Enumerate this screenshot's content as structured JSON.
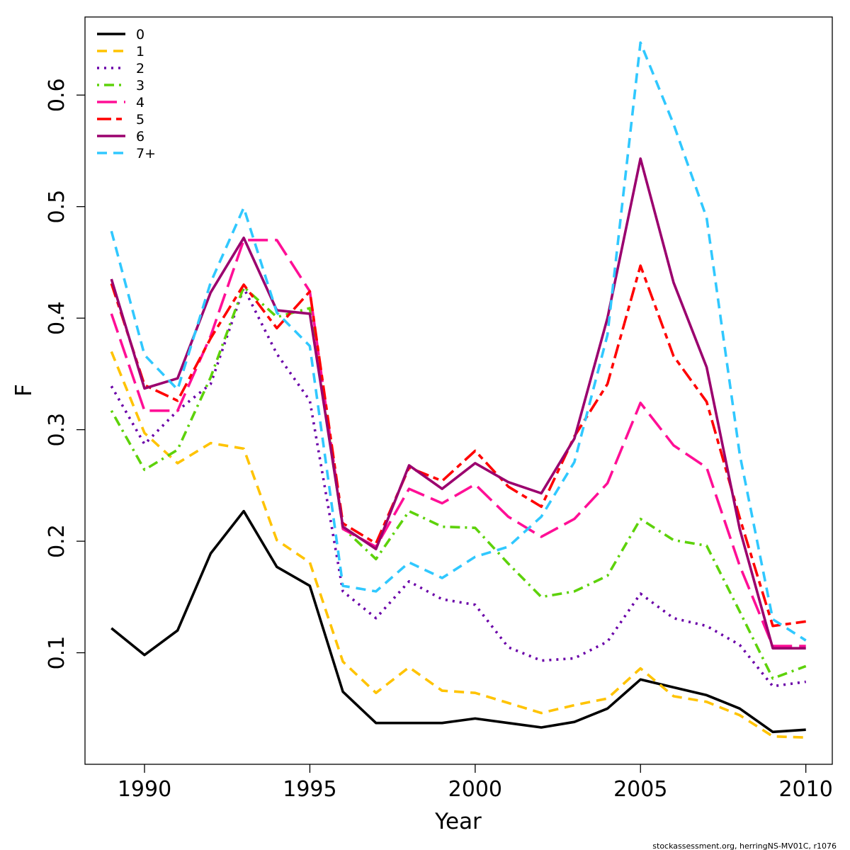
{
  "chart_data": {
    "type": "line",
    "xlabel": "Year",
    "ylabel": "F",
    "xlim": [
      1988.2,
      2010.8
    ],
    "ylim": [
      0.0,
      0.67
    ],
    "x_ticks": [
      1990,
      1995,
      2000,
      2005,
      2010
    ],
    "y_ticks": [
      0.1,
      0.2,
      0.3,
      0.4,
      0.5,
      0.6
    ],
    "x_tick_labels": [
      "1990",
      "1995",
      "2000",
      "2005",
      "2010"
    ],
    "y_tick_labels": [
      "0.1",
      "0.2",
      "0.3",
      "0.4",
      "0.5",
      "0.6"
    ],
    "grid": false,
    "legend_position": "top-left",
    "x": [
      1989,
      1990,
      1991,
      1992,
      1993,
      1994,
      1995,
      1996,
      1997,
      1998,
      1999,
      2000,
      2001,
      2002,
      2003,
      2004,
      2005,
      2006,
      2007,
      2008,
      2009,
      2010
    ],
    "series": [
      {
        "name": "0",
        "color": "#000000",
        "dash": "solid",
        "values": [
          0.122,
          0.098,
          0.12,
          0.189,
          0.227,
          0.177,
          0.16,
          0.065,
          0.037,
          0.037,
          0.037,
          0.041,
          0.037,
          0.033,
          0.038,
          0.05,
          0.076,
          0.069,
          0.062,
          0.05,
          0.029,
          0.031
        ]
      },
      {
        "name": "1",
        "color": "#FFC300",
        "dash": "dashed",
        "values": [
          0.37,
          0.297,
          0.27,
          0.288,
          0.283,
          0.201,
          0.181,
          0.092,
          0.064,
          0.087,
          0.066,
          0.064,
          0.055,
          0.046,
          0.053,
          0.059,
          0.086,
          0.061,
          0.056,
          0.044,
          0.025,
          0.024
        ]
      },
      {
        "name": "2",
        "color": "#6A00A8",
        "dash": "dotted",
        "values": [
          0.339,
          0.287,
          0.317,
          0.341,
          0.427,
          0.368,
          0.326,
          0.155,
          0.131,
          0.164,
          0.148,
          0.143,
          0.105,
          0.093,
          0.095,
          0.11,
          0.153,
          0.131,
          0.124,
          0.107,
          0.07,
          0.074
        ]
      },
      {
        "name": "3",
        "color": "#5DD20A",
        "dash": "dotdash",
        "values": [
          0.317,
          0.264,
          0.282,
          0.347,
          0.428,
          0.401,
          0.409,
          0.212,
          0.184,
          0.227,
          0.213,
          0.212,
          0.18,
          0.15,
          0.155,
          0.169,
          0.22,
          0.201,
          0.196,
          0.137,
          0.077,
          0.088
        ]
      },
      {
        "name": "4",
        "color": "#FF0F96",
        "dash": "longdash",
        "values": [
          0.404,
          0.317,
          0.317,
          0.384,
          0.47,
          0.47,
          0.424,
          0.211,
          0.195,
          0.247,
          0.234,
          0.251,
          0.222,
          0.204,
          0.22,
          0.252,
          0.324,
          0.286,
          0.266,
          0.178,
          0.106,
          0.106
        ]
      },
      {
        "name": "5",
        "color": "#FF0000",
        "dash": "twodash",
        "values": [
          0.431,
          0.34,
          0.326,
          0.382,
          0.43,
          0.391,
          0.424,
          0.216,
          0.198,
          0.266,
          0.254,
          0.281,
          0.249,
          0.231,
          0.294,
          0.341,
          0.447,
          0.366,
          0.325,
          0.221,
          0.124,
          0.128
        ]
      },
      {
        "name": "6",
        "color": "#9B006E",
        "dash": "solid",
        "values": [
          0.435,
          0.337,
          0.346,
          0.423,
          0.472,
          0.407,
          0.404,
          0.213,
          0.193,
          0.268,
          0.247,
          0.27,
          0.253,
          0.243,
          0.292,
          0.4,
          0.543,
          0.432,
          0.356,
          0.211,
          0.104,
          0.104
        ]
      },
      {
        "name": "7+",
        "color": "#30C8FF",
        "dash": "dashed",
        "values": [
          0.478,
          0.367,
          0.336,
          0.432,
          0.499,
          0.405,
          0.375,
          0.16,
          0.155,
          0.181,
          0.167,
          0.186,
          0.195,
          0.222,
          0.271,
          0.385,
          0.647,
          0.574,
          0.49,
          0.278,
          0.13,
          0.111
        ]
      }
    ]
  },
  "footer": "stockassessment.org, herringNS-MV01C, r1076"
}
